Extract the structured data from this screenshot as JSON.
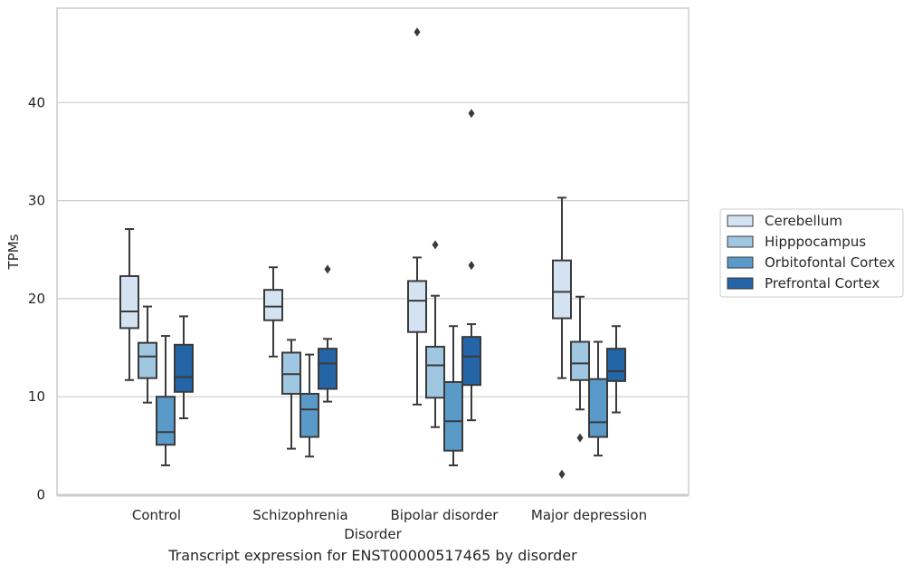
{
  "chart_data": {
    "type": "box",
    "caption": "Transcript expression for ENST00000517465 by disorder",
    "xlabel": "Disorder",
    "ylabel": "TPMs",
    "ylim": [
      0,
      50
    ],
    "yticks": [
      0,
      10,
      20,
      30,
      40
    ],
    "grid": "horizontal",
    "legend_position": "right",
    "categories": [
      "Control",
      "Schizophrenia",
      "Bipolar disorder",
      "Major depression"
    ],
    "series": [
      {
        "name": "Cerebellum",
        "color": "#d4e3f2",
        "boxes": [
          {
            "whisker_low": 11.7,
            "q1": 17.0,
            "median": 18.7,
            "q3": 22.3,
            "whisker_high": 27.1,
            "outliers": []
          },
          {
            "whisker_low": 14.1,
            "q1": 17.8,
            "median": 19.2,
            "q3": 20.9,
            "whisker_high": 23.2,
            "outliers": []
          },
          {
            "whisker_low": 9.2,
            "q1": 16.6,
            "median": 19.8,
            "q3": 21.8,
            "whisker_high": 24.2,
            "outliers": [
              47.2
            ]
          },
          {
            "whisker_low": 11.9,
            "q1": 18.0,
            "median": 20.7,
            "q3": 23.9,
            "whisker_high": 30.3,
            "outliers": [
              2.1
            ]
          }
        ]
      },
      {
        "name": "Hipppocampus",
        "color": "#9fc7e1",
        "boxes": [
          {
            "whisker_low": 9.4,
            "q1": 11.9,
            "median": 14.1,
            "q3": 15.5,
            "whisker_high": 19.2,
            "outliers": []
          },
          {
            "whisker_low": 4.7,
            "q1": 10.3,
            "median": 12.3,
            "q3": 14.5,
            "whisker_high": 15.8,
            "outliers": []
          },
          {
            "whisker_low": 6.9,
            "q1": 9.9,
            "median": 13.2,
            "q3": 15.1,
            "whisker_high": 20.3,
            "outliers": [
              25.5
            ]
          },
          {
            "whisker_low": 8.7,
            "q1": 11.7,
            "median": 13.4,
            "q3": 15.6,
            "whisker_high": 20.2,
            "outliers": [
              5.8
            ]
          }
        ]
      },
      {
        "name": "Orbitofontal Cortex",
        "color": "#5a9ac9",
        "boxes": [
          {
            "whisker_low": 3.0,
            "q1": 5.1,
            "median": 6.4,
            "q3": 10.0,
            "whisker_high": 16.2,
            "outliers": []
          },
          {
            "whisker_low": 3.9,
            "q1": 5.9,
            "median": 8.7,
            "q3": 10.3,
            "whisker_high": 14.3,
            "outliers": []
          },
          {
            "whisker_low": 3.0,
            "q1": 4.5,
            "median": 7.5,
            "q3": 11.5,
            "whisker_high": 17.2,
            "outliers": []
          },
          {
            "whisker_low": 4.0,
            "q1": 5.9,
            "median": 7.4,
            "q3": 11.8,
            "whisker_high": 15.6,
            "outliers": []
          }
        ]
      },
      {
        "name": "Prefrontal Cortex",
        "color": "#2465a8",
        "boxes": [
          {
            "whisker_low": 7.8,
            "q1": 10.5,
            "median": 12.0,
            "q3": 15.3,
            "whisker_high": 18.2,
            "outliers": []
          },
          {
            "whisker_low": 9.5,
            "q1": 10.8,
            "median": 13.4,
            "q3": 14.9,
            "whisker_high": 15.9,
            "outliers": [
              23.0
            ]
          },
          {
            "whisker_low": 7.6,
            "q1": 11.2,
            "median": 14.1,
            "q3": 16.1,
            "whisker_high": 17.4,
            "outliers": [
              38.9,
              23.4
            ]
          },
          {
            "whisker_low": 8.4,
            "q1": 11.6,
            "median": 12.6,
            "q3": 14.9,
            "whisker_high": 17.2,
            "outliers": []
          }
        ]
      }
    ]
  }
}
